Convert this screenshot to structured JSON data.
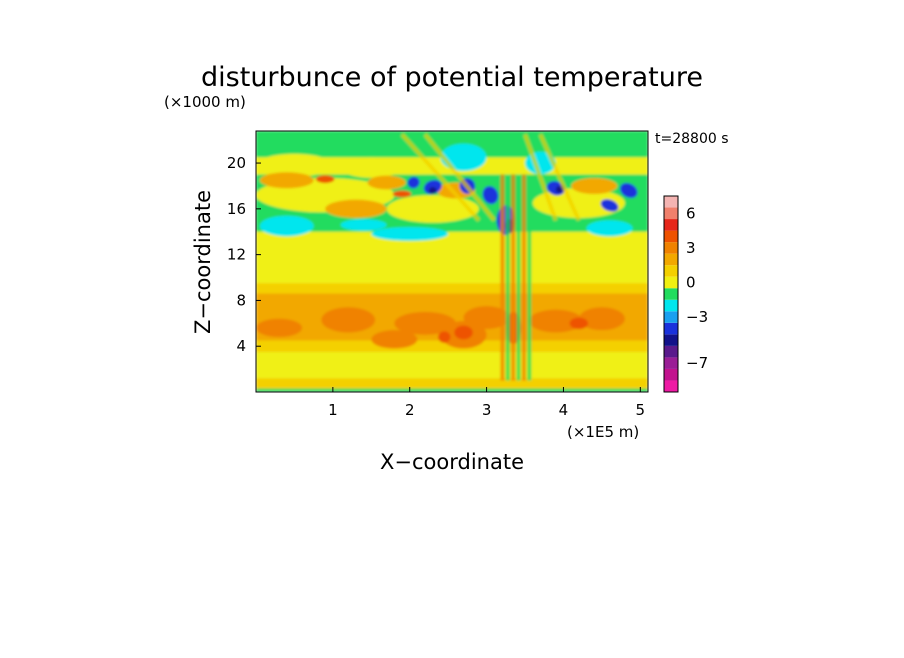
{
  "chart_data": {
    "type": "heatmap",
    "title": "disturbunce of potential temperature",
    "time_label": "t=28800 s",
    "xlabel": "X−coordinate",
    "ylabel": "Z−coordinate",
    "x_unit": "(×1E5 m)",
    "y_unit": "(×1000 m)",
    "xlim": [
      0,
      5.1
    ],
    "ylim": [
      0,
      22.8
    ],
    "x_ticks": [
      1,
      2,
      3,
      4,
      5
    ],
    "y_ticks": [
      4,
      8,
      12,
      16,
      20
    ],
    "colorbar": {
      "levels": [
        -9,
        -8,
        -7,
        -6,
        -5,
        -4,
        -3,
        -2,
        -1,
        0,
        1,
        2,
        3,
        4,
        5,
        6,
        7
      ],
      "colors": [
        "#ee1aa4",
        "#c2128e",
        "#9a1e96",
        "#5a1a8c",
        "#12128a",
        "#1a32dc",
        "#1aa0f0",
        "#00e6ee",
        "#22dc5e",
        "#f0f012",
        "#f4d000",
        "#f2a800",
        "#f08200",
        "#ee5200",
        "#e6261a",
        "#f0806c",
        "#f4b4b2"
      ],
      "tick_labels": [
        "6",
        "3",
        "0",
        "−3",
        "−7"
      ],
      "tick_values": [
        6,
        3,
        0,
        -3,
        -7
      ]
    },
    "field_description": "layered field: near-zero (yellow/green) aloft, positive (orange) band at z 4-9 km, mixed negative/positive wave structures above 13 km, strong vertical disturbance plume near x=3.3"
  }
}
